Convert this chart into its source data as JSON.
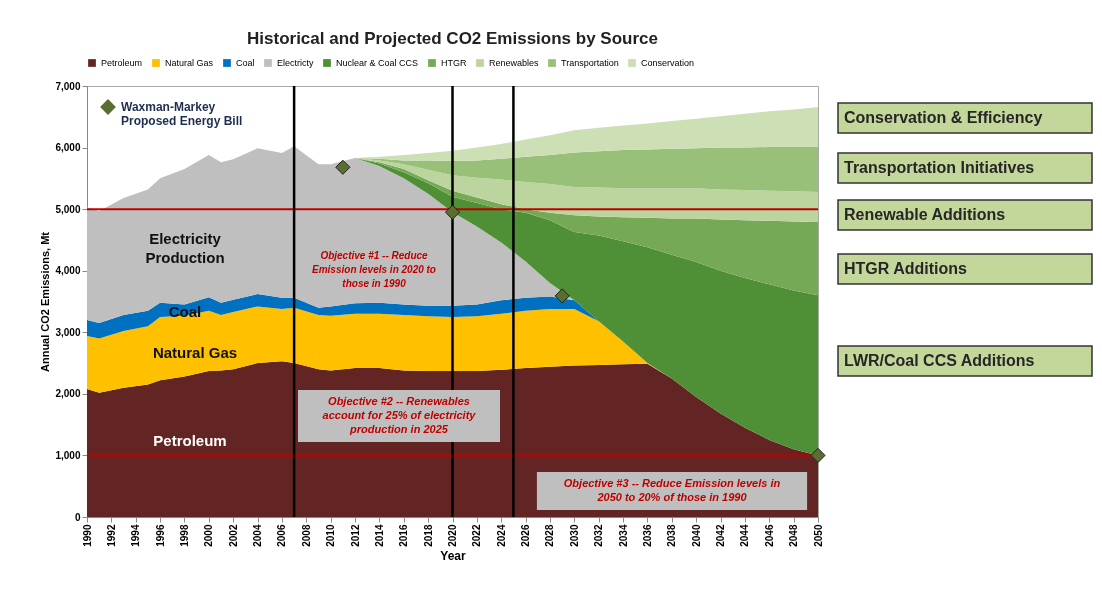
{
  "chart_data": {
    "type": "area",
    "stacked": true,
    "title": "Historical and Projected CO2 Emissions by Source",
    "xlabel": "Year",
    "ylabel": "Annual CO2 Emissions, Mt",
    "x": [
      1990,
      1991,
      1993,
      1995,
      1996,
      1998,
      2000,
      2001,
      2002,
      2004,
      2006,
      2007,
      2009,
      2010,
      2012,
      2014,
      2016,
      2018,
      2020,
      2022,
      2024,
      2026,
      2028,
      2030,
      2032,
      2034,
      2036,
      2038,
      2040,
      2042,
      2044,
      2046,
      2048,
      2050
    ],
    "xlim": [
      1990,
      2050
    ],
    "xticks": [
      1990,
      1992,
      1994,
      1996,
      1998,
      2000,
      2002,
      2004,
      2006,
      2008,
      2010,
      2012,
      2014,
      2016,
      2018,
      2020,
      2022,
      2024,
      2026,
      2028,
      2030,
      2032,
      2034,
      2036,
      2038,
      2040,
      2042,
      2044,
      2046,
      2048,
      2050
    ],
    "ylim": [
      0,
      7000
    ],
    "yticks": [
      0,
      {
        "value": 1000,
        "label": "1,000"
      },
      {
        "value": 2000,
        "label": "2,000"
      },
      {
        "value": 3000,
        "label": "3,000"
      },
      {
        "value": 4000,
        "label": "4,000"
      },
      {
        "value": 5000,
        "label": "5,000"
      },
      {
        "value": 6000,
        "label": "6,000"
      },
      {
        "value": 7000,
        "label": "7,000"
      }
    ],
    "legend": "top",
    "series": [
      {
        "name": "Petroleum",
        "color": "#632523",
        "values": [
          2080,
          2020,
          2100,
          2150,
          2220,
          2280,
          2370,
          2380,
          2400,
          2500,
          2530,
          2500,
          2400,
          2380,
          2420,
          2420,
          2380,
          2370,
          2370,
          2370,
          2390,
          2420,
          2440,
          2460,
          2470,
          2480,
          2490,
          2250,
          1950,
          1680,
          1450,
          1250,
          1100,
          1000
        ]
      },
      {
        "name": "Natural Gas",
        "color": "#ffc000",
        "values": [
          860,
          880,
          920,
          950,
          1030,
          990,
          980,
          900,
          930,
          920,
          850,
          900,
          880,
          890,
          880,
          880,
          900,
          890,
          880,
          890,
          910,
          930,
          940,
          920,
          710,
          370,
          10,
          0,
          null,
          null,
          null,
          null,
          null,
          null
        ]
      },
      {
        "name": "Coal",
        "color": "#0070c0",
        "values": [
          260,
          250,
          260,
          250,
          230,
          180,
          220,
          200,
          200,
          200,
          180,
          160,
          120,
          150,
          170,
          180,
          170,
          170,
          180,
          190,
          220,
          210,
          200,
          140,
          0,
          null,
          null,
          null,
          null,
          null,
          null,
          null,
          null,
          null
        ]
      },
      {
        "name": "Electricty",
        "color": "#bfbfbf",
        "values": [
          1830,
          1820,
          1900,
          1970,
          2020,
          2200,
          2310,
          2280,
          2280,
          2370,
          2350,
          2460,
          2330,
          2310,
          2360,
          2220,
          2050,
          1820,
          1520,
          1270,
          940,
          590,
          220,
          0,
          null,
          null,
          null,
          null,
          null,
          null,
          null,
          null,
          null,
          null
        ]
      },
      {
        "name": "Nuclear & Coal CCS",
        "color": "#4f8f35",
        "values": [
          null,
          null,
          null,
          null,
          null,
          null,
          null,
          null,
          null,
          null,
          null,
          null,
          null,
          null,
          0,
          40,
          100,
          170,
          250,
          380,
          540,
          790,
          1020,
          1110,
          1390,
          1630,
          1880,
          2010,
          2190,
          2320,
          2430,
          2530,
          2580,
          2600
        ]
      },
      {
        "name": "HTGR",
        "color": "#76a955",
        "values": [
          null,
          null,
          null,
          null,
          null,
          null,
          null,
          null,
          null,
          null,
          null,
          null,
          null,
          null,
          0,
          20,
          50,
          50,
          100,
          90,
          80,
          60,
          120,
          270,
          310,
          390,
          480,
          590,
          710,
          830,
          940,
          1030,
          1120,
          1190
        ]
      },
      {
        "name": "Renewables",
        "color": "#bcd59f",
        "values": [
          null,
          null,
          null,
          null,
          null,
          null,
          null,
          null,
          null,
          null,
          null,
          null,
          null,
          null,
          0,
          30,
          80,
          170,
          250,
          320,
          400,
          440,
          470,
          460,
          470,
          470,
          480,
          490,
          490,
          490,
          490,
          490,
          490,
          490
        ]
      },
      {
        "name": "Transportation",
        "color": "#98c078",
        "values": [
          null,
          null,
          null,
          null,
          null,
          null,
          null,
          null,
          null,
          null,
          null,
          null,
          null,
          null,
          0,
          30,
          60,
          150,
          230,
          280,
          340,
          410,
          470,
          560,
          590,
          620,
          630,
          640,
          650,
          680,
          690,
          710,
          720,
          730
        ]
      },
      {
        "name": "Conservation",
        "color": "#cde0b5",
        "values": [
          null,
          null,
          null,
          null,
          null,
          null,
          null,
          null,
          null,
          null,
          null,
          null,
          null,
          null,
          0,
          30,
          90,
          120,
          170,
          210,
          240,
          280,
          320,
          360,
          380,
          400,
          420,
          450,
          480,
          510,
          550,
          580,
          610,
          650
        ]
      },
      {
        "name": "Waxman-Markey Proposed Energy Bill",
        "type": "scatter",
        "marker": "diamond",
        "color": "#5a6e32",
        "x": [
          2011,
          2020,
          2029,
          2050
        ],
        "values": [
          5680,
          4950,
          3590,
          1000
        ]
      }
    ],
    "ref_lines": [
      {
        "axis": "y",
        "value": 5000,
        "color": "#c00000"
      },
      {
        "axis": "y",
        "value": 1000,
        "color": "#c00000"
      },
      {
        "axis": "x",
        "value": 2007,
        "color": "#000000"
      },
      {
        "axis": "x",
        "value": 2020,
        "color": "#000000"
      },
      {
        "axis": "x",
        "value": 2025,
        "color": "#000000"
      }
    ],
    "annotations": [
      "Electricity Production",
      "Coal",
      "Natural Gas",
      "Petroleum",
      "Objective #1 -- Reduce Emission levels in 2020 to those in 1990",
      "Objective #2 -- Renewables account for 25% of electricity production in 2025",
      "Objective #3 -- Reduce Emission levels in 2050 to 20% of those in 1990",
      "Conservation & Efficiency",
      "Transportation Initiatives",
      "Renewable Additions",
      "HTGR Additions",
      "LWR/Coal CCS Additions"
    ]
  }
}
